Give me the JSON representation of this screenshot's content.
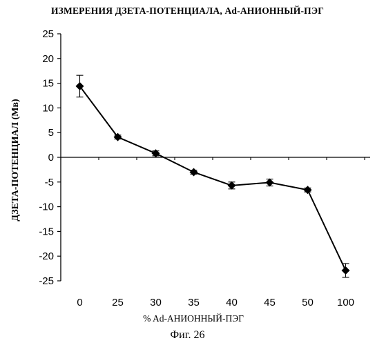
{
  "chart_data": {
    "type": "line",
    "title": "ИЗМЕРЕНИЯ ДЗЕТА-ПОТЕНЦИАЛА, Ad-АНИОННЫЙ-ПЭГ",
    "xlabel": "% Ad-АНИОННЫЙ-ПЭГ",
    "ylabel": "ДЗЕТА-ПОТЕНЦИАЛ (Мв)",
    "categories": [
      "0",
      "25",
      "30",
      "35",
      "40",
      "45",
      "50",
      "100"
    ],
    "series": [
      {
        "values": [
          14.4,
          4.1,
          0.8,
          -3.0,
          -5.7,
          -5.1,
          -6.6,
          -22.9
        ],
        "errors": [
          2.2,
          0.4,
          0.5,
          0.4,
          0.7,
          0.7,
          0.4,
          1.4
        ]
      }
    ],
    "ylim": [
      -25,
      25
    ],
    "yticks": [
      "25",
      "20",
      "15",
      "10",
      "5",
      "0",
      "-5",
      "-10",
      "-15",
      "-20",
      "-25"
    ],
    "grid": false,
    "marker": "diamond"
  },
  "caption": "Фиг. 26"
}
